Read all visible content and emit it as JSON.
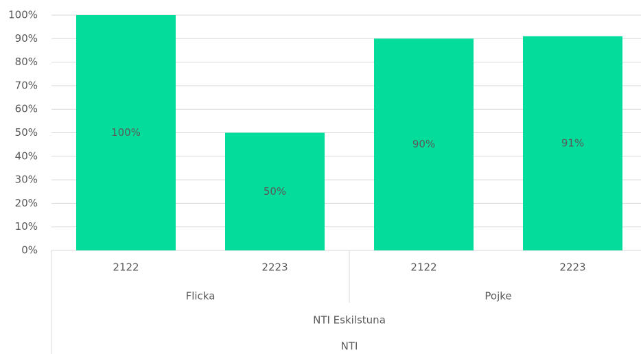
{
  "chart_data": {
    "type": "bar",
    "categories": [
      "2122",
      "2223",
      "2122",
      "2223"
    ],
    "group_levels": [
      [
        "Flicka",
        "Pojke"
      ],
      [
        "NTI Eskilstuna"
      ],
      [
        "NTI"
      ]
    ],
    "values": [
      100,
      50,
      90,
      91
    ],
    "value_labels": [
      "100%",
      "50%",
      "90%",
      "91%"
    ],
    "color": "#04dc9c",
    "ylim": [
      0,
      100
    ],
    "yticks": [
      {
        "value": 0,
        "label": "0%"
      },
      {
        "value": 10,
        "label": "10%"
      },
      {
        "value": 20,
        "label": "20%"
      },
      {
        "value": 30,
        "label": "30%"
      },
      {
        "value": 40,
        "label": "40%"
      },
      {
        "value": 50,
        "label": "50%"
      },
      {
        "value": 60,
        "label": "60%"
      },
      {
        "value": 70,
        "label": "70%"
      },
      {
        "value": 80,
        "label": "80%"
      },
      {
        "value": 90,
        "label": "90%"
      },
      {
        "value": 100,
        "label": "100%"
      }
    ],
    "grid": true
  }
}
